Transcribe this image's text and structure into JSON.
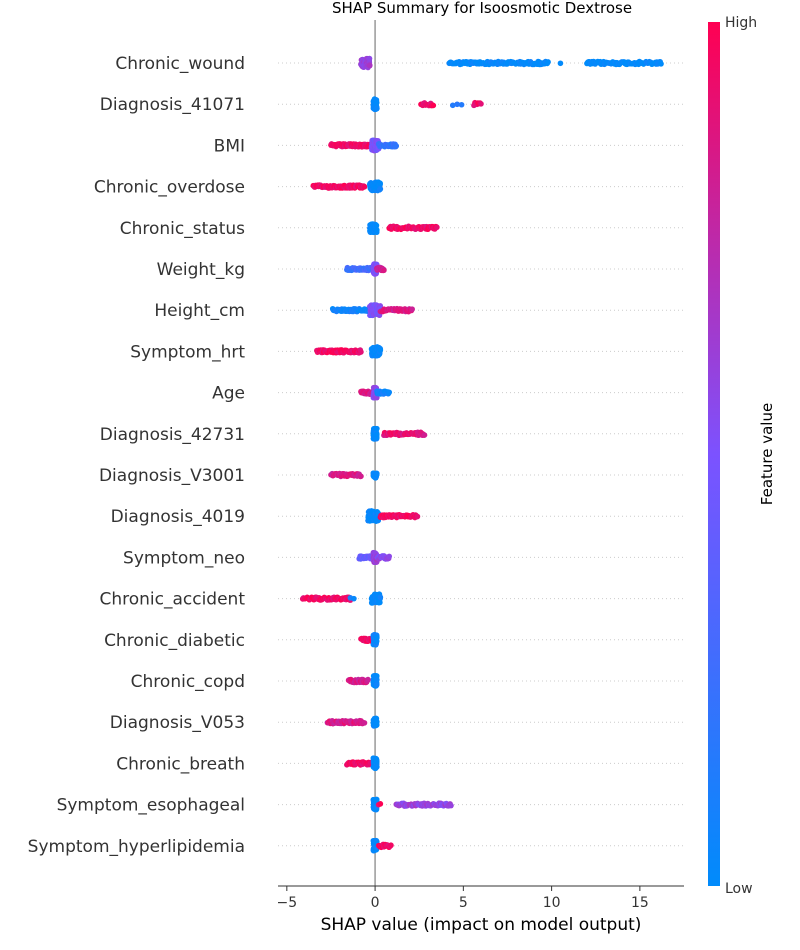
{
  "chart_data": {
    "type": "scatter",
    "title": "SHAP Summary for Isoosmotic Dextrose",
    "xlabel": "SHAP value (impact on model output)",
    "colorbar_label": "Feature value",
    "colorbar_high": "High",
    "colorbar_low": "Low",
    "xlim": [
      -5.5,
      17.5
    ],
    "xticks": [
      {
        "value": -5,
        "label": "−5"
      },
      {
        "value": 0,
        "label": "0"
      },
      {
        "value": 5,
        "label": "5"
      },
      {
        "value": 10,
        "label": "10"
      },
      {
        "value": 15,
        "label": "15"
      }
    ],
    "colors": {
      "low": "#008bfb",
      "mid": "#7c52ff",
      "high": "#ff0052",
      "zero_line": "#999999",
      "row_line": "#cccccc",
      "text": "#333333"
    },
    "features": [
      {
        "name": "Chronic_wound",
        "segments": [
          {
            "x0": -0.8,
            "x1": -0.3,
            "c": 0.6,
            "spread": 0.3,
            "n": 60
          },
          {
            "x0": 4.2,
            "x1": 9.8,
            "c": 0.0,
            "spread": 0.08,
            "n": 120
          },
          {
            "x0": 10.5,
            "x1": 10.5,
            "c": 0.0,
            "spread": 0.05,
            "n": 1
          },
          {
            "x0": 12.0,
            "x1": 16.2,
            "c": 0.0,
            "spread": 0.08,
            "n": 90
          }
        ]
      },
      {
        "name": "Diagnosis_41071",
        "segments": [
          {
            "x0": -0.1,
            "x1": 0.1,
            "c": 0.0,
            "spread": 0.35,
            "n": 60
          },
          {
            "x0": 2.6,
            "x1": 3.3,
            "c": 0.95,
            "spread": 0.08,
            "n": 15
          },
          {
            "x0": 4.4,
            "x1": 4.9,
            "c": 0.1,
            "spread": 0.05,
            "n": 3
          },
          {
            "x0": 5.6,
            "x1": 6.0,
            "c": 0.95,
            "spread": 0.08,
            "n": 8
          }
        ]
      },
      {
        "name": "BMI",
        "segments": [
          {
            "x0": -2.5,
            "x1": -0.3,
            "c": 0.95,
            "spread": 0.1,
            "n": 70
          },
          {
            "x0": -0.2,
            "x1": 0.2,
            "c": 0.5,
            "spread": 0.35,
            "n": 60
          },
          {
            "x0": 0.2,
            "x1": 1.2,
            "c": 0.2,
            "spread": 0.1,
            "n": 30
          }
        ]
      },
      {
        "name": "Chronic_overdose",
        "segments": [
          {
            "x0": -3.5,
            "x1": -0.6,
            "c": 0.95,
            "spread": 0.08,
            "n": 70
          },
          {
            "x0": -0.3,
            "x1": 0.3,
            "c": 0.0,
            "spread": 0.3,
            "n": 60
          }
        ]
      },
      {
        "name": "Chronic_status",
        "segments": [
          {
            "x0": -0.3,
            "x1": 0.1,
            "c": 0.0,
            "spread": 0.3,
            "n": 60
          },
          {
            "x0": 0.8,
            "x1": 3.5,
            "c": 0.95,
            "spread": 0.08,
            "n": 70
          }
        ]
      },
      {
        "name": "Weight_kg",
        "segments": [
          {
            "x0": -1.6,
            "x1": -0.1,
            "c": 0.25,
            "spread": 0.08,
            "n": 45
          },
          {
            "x0": -0.1,
            "x1": 0.1,
            "c": 0.5,
            "spread": 0.35,
            "n": 60
          },
          {
            "x0": 0.1,
            "x1": 0.5,
            "c": 0.8,
            "spread": 0.08,
            "n": 20
          }
        ]
      },
      {
        "name": "Height_cm",
        "segments": [
          {
            "x0": -2.4,
            "x1": -0.3,
            "c": 0.05,
            "spread": 0.08,
            "n": 50
          },
          {
            "x0": -0.3,
            "x1": 0.3,
            "c": 0.5,
            "spread": 0.35,
            "n": 70
          },
          {
            "x0": 0.3,
            "x1": 2.1,
            "c": 0.85,
            "spread": 0.1,
            "n": 45
          }
        ]
      },
      {
        "name": "Symptom_hrt",
        "segments": [
          {
            "x0": -3.3,
            "x1": -0.8,
            "c": 0.95,
            "spread": 0.08,
            "n": 65
          },
          {
            "x0": -0.2,
            "x1": 0.3,
            "c": 0.0,
            "spread": 0.3,
            "n": 60
          }
        ]
      },
      {
        "name": "Age",
        "segments": [
          {
            "x0": -0.8,
            "x1": -0.1,
            "c": 0.85,
            "spread": 0.08,
            "n": 30
          },
          {
            "x0": -0.1,
            "x1": 0.1,
            "c": 0.55,
            "spread": 0.35,
            "n": 60
          },
          {
            "x0": 0.1,
            "x1": 0.8,
            "c": 0.05,
            "spread": 0.08,
            "n": 25
          }
        ]
      },
      {
        "name": "Diagnosis_42731",
        "segments": [
          {
            "x0": -0.1,
            "x1": 0.1,
            "c": 0.0,
            "spread": 0.35,
            "n": 60
          },
          {
            "x0": 0.5,
            "x1": 2.8,
            "c": 0.9,
            "spread": 0.08,
            "n": 55
          }
        ]
      },
      {
        "name": "Diagnosis_V3001",
        "segments": [
          {
            "x0": -2.5,
            "x1": -0.8,
            "c": 0.85,
            "spread": 0.08,
            "n": 50
          },
          {
            "x0": -0.1,
            "x1": 0.1,
            "c": 0.0,
            "spread": 0.2,
            "n": 30
          }
        ]
      },
      {
        "name": "Diagnosis_4019",
        "segments": [
          {
            "x0": -0.4,
            "x1": 0.2,
            "c": 0.0,
            "spread": 0.35,
            "n": 60
          },
          {
            "x0": 0.3,
            "x1": 2.4,
            "c": 0.95,
            "spread": 0.08,
            "n": 60
          }
        ]
      },
      {
        "name": "Symptom_neo",
        "segments": [
          {
            "x0": -0.9,
            "x1": -0.1,
            "c": 0.4,
            "spread": 0.08,
            "n": 30
          },
          {
            "x0": -0.1,
            "x1": 0.1,
            "c": 0.6,
            "spread": 0.35,
            "n": 55
          },
          {
            "x0": 0.1,
            "x1": 0.8,
            "c": 0.55,
            "spread": 0.08,
            "n": 25
          }
        ]
      },
      {
        "name": "Chronic_accident",
        "segments": [
          {
            "x0": -4.1,
            "x1": -1.4,
            "c": 0.95,
            "spread": 0.08,
            "n": 65
          },
          {
            "x0": -1.4,
            "x1": -1.2,
            "c": 0.1,
            "spread": 0.05,
            "n": 2
          },
          {
            "x0": -0.2,
            "x1": 0.3,
            "c": 0.0,
            "spread": 0.3,
            "n": 55
          }
        ]
      },
      {
        "name": "Chronic_diabetic",
        "segments": [
          {
            "x0": -0.8,
            "x1": -0.1,
            "c": 0.95,
            "spread": 0.08,
            "n": 30
          },
          {
            "x0": -0.1,
            "x1": 0.1,
            "c": 0.05,
            "spread": 0.35,
            "n": 55
          }
        ]
      },
      {
        "name": "Chronic_copd",
        "segments": [
          {
            "x0": -1.5,
            "x1": -0.4,
            "c": 0.85,
            "spread": 0.08,
            "n": 35
          },
          {
            "x0": -0.1,
            "x1": 0.1,
            "c": 0.0,
            "spread": 0.35,
            "n": 55
          }
        ]
      },
      {
        "name": "Diagnosis_V053",
        "segments": [
          {
            "x0": -2.7,
            "x1": -0.6,
            "c": 0.85,
            "spread": 0.08,
            "n": 55
          },
          {
            "x0": -0.1,
            "x1": 0.1,
            "c": 0.0,
            "spread": 0.25,
            "n": 30
          }
        ]
      },
      {
        "name": "Chronic_breath",
        "segments": [
          {
            "x0": -1.6,
            "x1": -0.1,
            "c": 0.95,
            "spread": 0.08,
            "n": 40
          },
          {
            "x0": -0.1,
            "x1": 0.1,
            "c": 0.0,
            "spread": 0.35,
            "n": 55
          }
        ]
      },
      {
        "name": "Symptom_esophageal",
        "segments": [
          {
            "x0": -0.1,
            "x1": 0.1,
            "c": 0.0,
            "spread": 0.35,
            "n": 55
          },
          {
            "x0": 0.2,
            "x1": 0.3,
            "c": 0.95,
            "spread": 0.05,
            "n": 2
          },
          {
            "x0": 1.2,
            "x1": 4.3,
            "c": 0.6,
            "spread": 0.08,
            "n": 60
          }
        ]
      },
      {
        "name": "Symptom_hyperlipidemia",
        "segments": [
          {
            "x0": -0.1,
            "x1": 0.1,
            "c": 0.0,
            "spread": 0.35,
            "n": 55
          },
          {
            "x0": 0.2,
            "x1": 0.9,
            "c": 0.95,
            "spread": 0.08,
            "n": 20
          }
        ]
      }
    ]
  }
}
